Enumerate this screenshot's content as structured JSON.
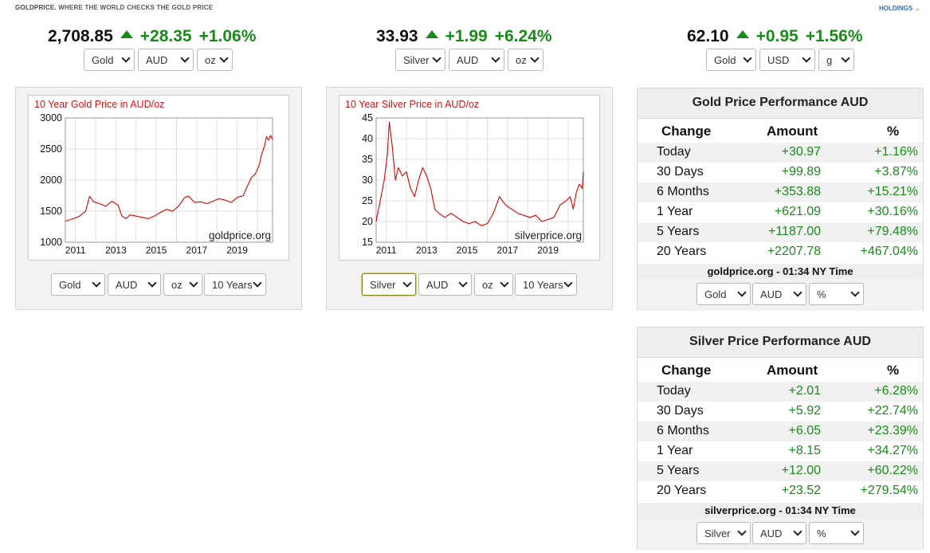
{
  "brand": {
    "name": "GOLDPRICE.",
    "tagline": "WHERE THE WORLD CHECKS THE GOLD PRICE"
  },
  "holdings_label": "HOLDINGS",
  "tickers": [
    {
      "price": "2,708.85",
      "change": "+28.35",
      "percent": "+1.06%",
      "direction": "up",
      "selects": [
        "Gold",
        "AUD",
        "oz"
      ]
    },
    {
      "price": "33.93",
      "change": "+1.99",
      "percent": "+6.24%",
      "direction": "up",
      "selects": [
        "Silver",
        "AUD",
        "oz"
      ]
    },
    {
      "price": "62.10",
      "change": "+0.95",
      "percent": "+1.56%",
      "direction": "up",
      "selects": [
        "Gold",
        "USD",
        "g"
      ]
    }
  ],
  "charts_controls": [
    {
      "selects": [
        "Gold",
        "AUD",
        "oz",
        "10 Years"
      ]
    },
    {
      "selects": [
        "Silver",
        "AUD",
        "oz",
        "10 Years"
      ]
    }
  ],
  "perf_gold": {
    "title": "Gold Price Performance AUD",
    "headers": [
      "Change",
      "Amount",
      "%"
    ],
    "rows": [
      {
        "label": "Today",
        "amount": "+30.97",
        "percent": "+1.16%"
      },
      {
        "label": "30 Days",
        "amount": "+99.89",
        "percent": "+3.87%"
      },
      {
        "label": "6 Months",
        "amount": "+353.88",
        "percent": "+15.21%"
      },
      {
        "label": "1 Year",
        "amount": "+621.09",
        "percent": "+30.16%"
      },
      {
        "label": "5 Years",
        "amount": "+1187.00",
        "percent": "+79.48%"
      },
      {
        "label": "20 Years",
        "amount": "+2207.78",
        "percent": "+467.04%"
      }
    ],
    "footer": "goldprice.org - 01:34 NY Time",
    "selects": [
      "Gold",
      "AUD",
      "%"
    ]
  },
  "perf_silver": {
    "title": "Silver Price Performance AUD",
    "headers": [
      "Change",
      "Amount",
      "%"
    ],
    "rows": [
      {
        "label": "Today",
        "amount": "+2.01",
        "percent": "+6.28%"
      },
      {
        "label": "30 Days",
        "amount": "+5.92",
        "percent": "+22.74%"
      },
      {
        "label": "6 Months",
        "amount": "+6.05",
        "percent": "+23.39%"
      },
      {
        "label": "1 Year",
        "amount": "+8.15",
        "percent": "+34.27%"
      },
      {
        "label": "5 Years",
        "amount": "+12.00",
        "percent": "+60.22%"
      },
      {
        "label": "20 Years",
        "amount": "+23.52",
        "percent": "+279.54%"
      }
    ],
    "footer": "silverprice.org - 01:34 NY Time",
    "selects": [
      "Silver",
      "AUD",
      "%"
    ]
  },
  "colors": {
    "up_green": "#1a8a1a",
    "chart_line": "#dd0000",
    "chart_title": "#d11111"
  },
  "chart_data": [
    {
      "type": "line",
      "title": "10 Year Gold Price in AUD/oz",
      "watermark": "goldprice.org",
      "xlabel": "",
      "ylabel": "",
      "ylim": [
        1000,
        3000
      ],
      "xlim": [
        2010.5,
        2020.75
      ],
      "yticks": [
        1000,
        1500,
        2000,
        2500,
        3000
      ],
      "xticks": [
        2011,
        2013,
        2015,
        2017,
        2019
      ],
      "x": [
        2010.5,
        2010.9,
        2011.2,
        2011.5,
        2011.7,
        2011.9,
        2012.2,
        2012.5,
        2012.8,
        2013.1,
        2013.3,
        2013.5,
        2013.7,
        2014.0,
        2014.3,
        2014.6,
        2014.9,
        2015.2,
        2015.5,
        2015.8,
        2016.1,
        2016.4,
        2016.6,
        2016.9,
        2017.2,
        2017.5,
        2017.8,
        2018.1,
        2018.4,
        2018.7,
        2019.0,
        2019.3,
        2019.5,
        2019.7,
        2019.9,
        2020.1,
        2020.2,
        2020.35,
        2020.45,
        2020.55,
        2020.65,
        2020.75
      ],
      "series": [
        {
          "values": [
            1340,
            1380,
            1420,
            1500,
            1740,
            1650,
            1620,
            1580,
            1660,
            1600,
            1420,
            1380,
            1440,
            1420,
            1400,
            1380,
            1420,
            1480,
            1530,
            1500,
            1580,
            1720,
            1740,
            1640,
            1650,
            1620,
            1660,
            1700,
            1680,
            1640,
            1720,
            1750,
            1900,
            2040,
            2100,
            2250,
            2400,
            2550,
            2700,
            2640,
            2720,
            2650
          ]
        }
      ]
    },
    {
      "type": "line",
      "title": "10 Year Silver Price in AUD/oz",
      "watermark": "silverprice.org",
      "xlabel": "",
      "ylabel": "",
      "ylim": [
        15,
        45
      ],
      "xlim": [
        2010.5,
        2020.75
      ],
      "yticks": [
        15,
        20,
        25,
        30,
        35,
        40,
        45
      ],
      "xticks": [
        2011,
        2013,
        2015,
        2017,
        2019
      ],
      "x": [
        2010.5,
        2010.7,
        2010.9,
        2011.05,
        2011.15,
        2011.3,
        2011.45,
        2011.6,
        2011.8,
        2012.0,
        2012.2,
        2012.4,
        2012.6,
        2012.8,
        2013.0,
        2013.2,
        2013.4,
        2013.6,
        2013.9,
        2014.2,
        2014.5,
        2014.8,
        2015.1,
        2015.4,
        2015.7,
        2016.0,
        2016.3,
        2016.6,
        2016.9,
        2017.2,
        2017.5,
        2017.8,
        2018.1,
        2018.4,
        2018.7,
        2019.0,
        2019.3,
        2019.6,
        2019.9,
        2020.1,
        2020.25,
        2020.4,
        2020.55,
        2020.7,
        2020.75
      ],
      "series": [
        {
          "values": [
            20,
            25,
            30,
            36,
            44,
            38,
            30,
            33,
            31,
            32,
            28,
            26,
            30,
            33,
            31,
            28,
            23,
            22,
            21,
            22,
            21,
            20,
            19.5,
            20,
            19,
            19.5,
            22,
            26,
            24,
            23,
            22,
            21.5,
            21,
            21.5,
            20,
            20.5,
            21,
            24,
            25,
            26,
            23,
            27,
            29,
            28,
            32
          ]
        }
      ]
    }
  ]
}
